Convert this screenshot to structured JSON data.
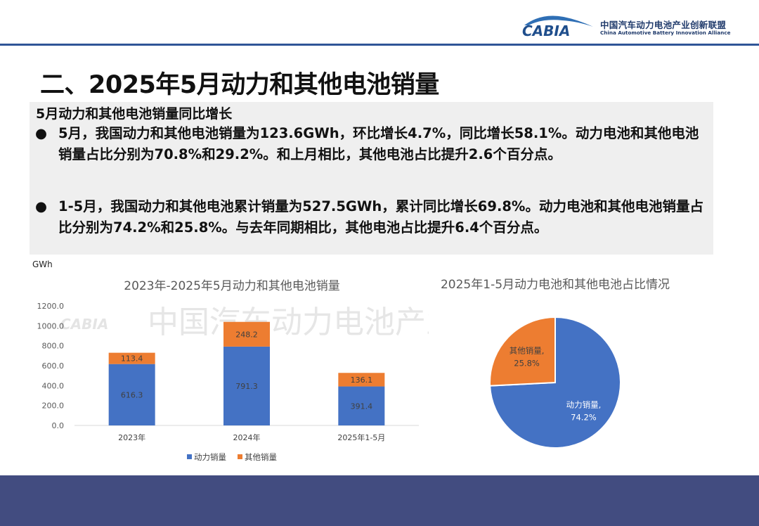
{
  "header": {
    "logo_text": "CABIA",
    "org_cn": "中国汽车动力电池产业创新联盟",
    "org_en": "China Automotive Battery Innovation Alliance"
  },
  "page_title": "二、2025年5月动力和其他电池销量",
  "summary": {
    "heading": "5月动力和其他电池销量同比增长",
    "bullet_char": "●",
    "bullets": [
      "5月，我国动力和其他电池销量为123.6GWh，环比增长4.7%，同比增长58.1%。动力电池和其他电池销量占比分别为70.8%和29.2%。和上月相比，其他电池占比提升2.6个百分点。",
      "1-5月，我国动力和其他电池累计销量为527.5GWh，累计同比增长69.8%。动力电池和其他电池销量占比分别为74.2%和25.8%。与去年同期相比，其他电池占比提升6.4个百分点。"
    ]
  },
  "watermark": "中国汽车动力电池产业创新联盟",
  "colors": {
    "power": "#4472c4",
    "other": "#ed7d31",
    "header_line": "#2f5597",
    "footer": "#424c80"
  },
  "chart_data": [
    {
      "type": "bar",
      "stacked": true,
      "title": "2023年-2025年5月动力和其他电池销量",
      "ylabel": "GWh",
      "ylim": [
        0,
        1200
      ],
      "yticks": [
        "0.0",
        "200.0",
        "400.0",
        "600.0",
        "800.0",
        "1000.0",
        "1200.0"
      ],
      "categories": [
        "2023年",
        "2024年",
        "2025年1-5月"
      ],
      "series": [
        {
          "name": "动力销量",
          "values": [
            616.3,
            791.3,
            391.4
          ],
          "labels": [
            "616.3",
            "791.3",
            "391.4"
          ]
        },
        {
          "name": "其他销量",
          "values": [
            113.4,
            248.2,
            136.1
          ],
          "labels": [
            "113.4",
            "248.2",
            "136.1"
          ]
        }
      ],
      "legend": "bottom"
    },
    {
      "type": "pie",
      "title": "2025年1-5月动力电池和其他电池占比情况",
      "slices": [
        {
          "name": "动力销量",
          "value": 74.2,
          "label_name": "动力销量,",
          "label_pct": "74.2%"
        },
        {
          "name": "其他销量",
          "value": 25.8,
          "label_name": "其他销量,",
          "label_pct": "25.8%"
        }
      ]
    }
  ]
}
